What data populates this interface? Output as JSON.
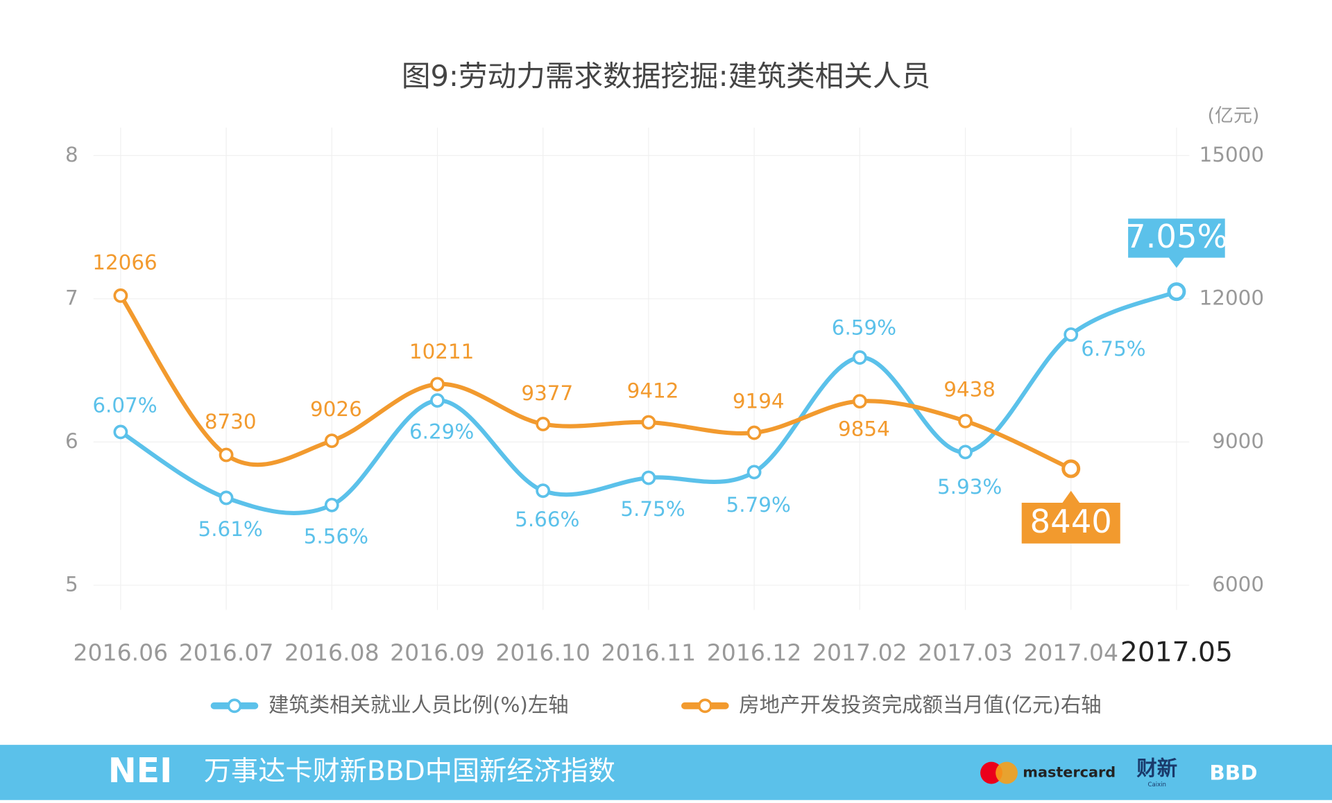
{
  "chart_data": {
    "type": "line",
    "title": "图9:劳动力需求数据挖掘:建筑类相关人员",
    "y2_unit": "(亿元)",
    "categories": [
      "2016.06",
      "2016.07",
      "2016.08",
      "2016.09",
      "2016.10",
      "2016.11",
      "2016.12",
      "2017.02",
      "2017.03",
      "2017.04",
      "2017.05"
    ],
    "series": [
      {
        "name": "建筑类相关就业人员比例(%)左轴",
        "color": "#5bc1ea",
        "axis": "y",
        "values": [
          6.07,
          5.61,
          5.56,
          6.29,
          5.66,
          5.75,
          5.79,
          6.59,
          5.93,
          6.75,
          7.05
        ],
        "value_labels": [
          "6.07%",
          "5.61%",
          "5.56%",
          "6.29%",
          "5.66%",
          "5.75%",
          "5.79%",
          "6.59%",
          "5.93%",
          "6.75%",
          "7.05%"
        ]
      },
      {
        "name": "房地产开发投资完成额当月值(亿元)右轴",
        "color": "#f29a2e",
        "axis": "y2",
        "values": [
          12066,
          8730,
          9026,
          10211,
          9377,
          9412,
          9194,
          9854,
          9438,
          8440,
          null
        ]
      }
    ],
    "ylim": [
      5,
      8
    ],
    "yticks": [
      5,
      6,
      7,
      8
    ],
    "y2lim": [
      6000,
      15000
    ],
    "y2ticks": [
      6000,
      9000,
      12000,
      15000
    ],
    "grid": true,
    "legend": "bottom"
  },
  "footer": {
    "logo": "NEI",
    "name": "万事达卡财新BBD中国新经济指数",
    "brand1": "mastercard",
    "brand2": "财新",
    "brand2_sub": "Caixin",
    "brand3": "BBD"
  }
}
